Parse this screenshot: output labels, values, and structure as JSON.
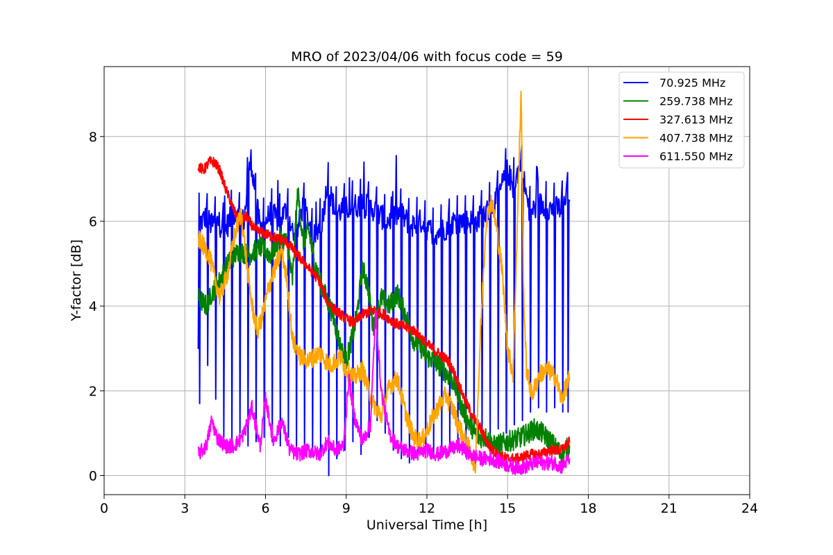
{
  "chart_data": {
    "type": "line",
    "title": "MRO of 2023/04/06 with focus code = 59",
    "xlabel": "Universal Time [h]",
    "ylabel": "Y-factor [dB]",
    "xlim": [
      0,
      24
    ],
    "ylim": [
      -0.45,
      9.65
    ],
    "xticks": [
      0,
      3,
      6,
      9,
      12,
      15,
      18,
      21,
      24
    ],
    "xtick_labels": [
      "0",
      "3",
      "6",
      "9",
      "12",
      "15",
      "18",
      "21",
      "24"
    ],
    "yticks": [
      0,
      2,
      4,
      6,
      8
    ],
    "ytick_labels": [
      "0",
      "2",
      "4",
      "6",
      "8"
    ],
    "grid": true,
    "legend_position": "top-right",
    "series": [
      {
        "name": " 70.925 MHz",
        "color": "#0000ff",
        "x": [
          3.5,
          3.52,
          3.6,
          3.8,
          4.0,
          4.2,
          4.5,
          4.8,
          5.2,
          5.45,
          5.8,
          6.2,
          6.5,
          6.8,
          7.1,
          7.4,
          7.8,
          8.1,
          8.3,
          8.6,
          9.0,
          9.5,
          10.0,
          10.5,
          11.0,
          11.4,
          11.8,
          12.2,
          12.6,
          13.0,
          13.4,
          13.8,
          14.2,
          14.6,
          15.0,
          15.2,
          15.5,
          15.8,
          16.2,
          16.6,
          17.0,
          17.3
        ],
        "y": [
          3.0,
          6.1,
          6.0,
          6.1,
          5.9,
          6.0,
          5.8,
          6.2,
          6.0,
          7.5,
          5.8,
          6.2,
          6.0,
          6.3,
          5.5,
          6.4,
          5.6,
          6.0,
          6.9,
          6.2,
          6.3,
          6.4,
          6.3,
          6.0,
          6.2,
          5.9,
          6.0,
          5.7,
          5.8,
          6.0,
          6.0,
          6.0,
          6.2,
          6.5,
          7.2,
          6.8,
          7.4,
          6.2,
          6.4,
          6.3,
          6.3,
          6.6
        ],
        "dips": {
          "x": [
            3.55,
            3.85,
            4.15,
            4.45,
            4.75,
            5.05,
            5.35,
            5.65,
            5.95,
            6.25,
            6.55,
            6.85,
            7.15,
            7.45,
            7.75,
            8.05,
            8.35,
            8.65,
            8.95,
            9.25,
            9.55,
            9.85,
            10.15,
            10.45,
            10.75,
            11.05,
            11.35,
            11.65,
            11.95,
            12.25,
            12.55,
            12.85,
            13.15,
            13.45,
            13.75,
            14.05,
            14.35,
            14.65,
            14.95,
            15.25,
            15.55,
            15.85,
            16.15,
            16.45,
            16.75,
            17.05,
            17.25
          ],
          "y": [
            1.7,
            2.6,
            1.8,
            0.9,
            0.8,
            1.0,
            0.7,
            0.8,
            0.9,
            0.8,
            0.7,
            0.9,
            0.6,
            0.6,
            0.5,
            0.5,
            0.0,
            0.4,
            0.6,
            0.8,
            0.5,
            0.9,
            1.3,
            1.0,
            0.6,
            0.4,
            0.3,
            0.4,
            0.6,
            0.5,
            0.5,
            0.7,
            0.8,
            0.6,
            1.0,
            0.9,
            0.9,
            1.1,
            1.0,
            1.2,
            1.3,
            1.5,
            1.6,
            1.5,
            1.6,
            1.5,
            1.5
          ]
        }
      },
      {
        "name": "259.738 MHz",
        "color": "#008000",
        "x": [
          3.5,
          3.8,
          4.0,
          4.3,
          4.6,
          5.0,
          5.4,
          5.8,
          6.2,
          6.5,
          6.8,
          7.0,
          7.2,
          7.4,
          7.6,
          7.8,
          8.0,
          8.2,
          8.5,
          8.8,
          9.0,
          9.2,
          9.4,
          9.6,
          9.8,
          10.0,
          10.3,
          10.6,
          10.9,
          11.2,
          11.5,
          11.8,
          12.0,
          12.3,
          12.6,
          13.0,
          13.3,
          13.6,
          13.9,
          14.2,
          14.5,
          15.0,
          15.5,
          16.0,
          16.3,
          16.6,
          17.0,
          17.3
        ],
        "y": [
          4.2,
          4.0,
          4.3,
          4.6,
          5.0,
          5.3,
          5.2,
          5.4,
          5.2,
          5.6,
          5.5,
          4.6,
          6.7,
          5.5,
          5.8,
          5.1,
          4.6,
          4.3,
          3.8,
          3.0,
          2.7,
          3.2,
          3.8,
          4.9,
          4.5,
          3.5,
          4.2,
          4.0,
          4.3,
          3.8,
          3.2,
          3.0,
          2.8,
          2.7,
          2.5,
          2.2,
          1.6,
          1.2,
          0.9,
          0.9,
          0.7,
          0.8,
          0.9,
          1.1,
          1.0,
          0.8,
          0.5,
          0.7
        ]
      },
      {
        "name": "327.613 MHz",
        "color": "#ff0000",
        "x": [
          3.5,
          3.7,
          3.9,
          4.1,
          4.3,
          4.5,
          4.8,
          5.0,
          5.3,
          5.6,
          6.0,
          6.4,
          6.8,
          7.2,
          7.6,
          8.0,
          8.3,
          8.6,
          9.0,
          9.3,
          9.6,
          10.0,
          10.4,
          10.8,
          11.2,
          11.6,
          12.0,
          12.4,
          12.8,
          13.1,
          13.4,
          13.7,
          14.0,
          14.3,
          14.6,
          15.0,
          15.4,
          15.8,
          16.2,
          16.6,
          17.0,
          17.3
        ],
        "y": [
          7.3,
          7.2,
          7.4,
          7.4,
          7.2,
          6.8,
          6.3,
          6.0,
          6.1,
          5.8,
          5.7,
          5.6,
          5.5,
          5.2,
          4.9,
          4.6,
          4.1,
          3.9,
          3.7,
          3.6,
          3.8,
          3.9,
          3.8,
          3.6,
          3.5,
          3.4,
          3.1,
          2.9,
          2.7,
          2.3,
          1.8,
          1.4,
          1.1,
          0.7,
          0.5,
          0.4,
          0.4,
          0.5,
          0.5,
          0.6,
          0.6,
          0.8
        ]
      },
      {
        "name": "407.738 MHz",
        "color": "#ffa500",
        "x": [
          3.5,
          3.7,
          3.9,
          4.1,
          4.3,
          4.6,
          4.9,
          5.1,
          5.3,
          5.5,
          5.7,
          5.9,
          6.1,
          6.3,
          6.6,
          6.8,
          7.0,
          7.3,
          7.6,
          8.0,
          8.4,
          8.8,
          9.0,
          9.3,
          9.6,
          10.0,
          10.3,
          10.6,
          10.9,
          11.2,
          11.5,
          11.8,
          12.1,
          12.4,
          12.7,
          13.0,
          13.3,
          13.6,
          13.8,
          14.0,
          14.2,
          14.4,
          14.6,
          14.8,
          15.0,
          15.2,
          15.4,
          15.5,
          15.6,
          15.7,
          15.9,
          16.2,
          16.5,
          16.8,
          17.0,
          17.3
        ],
        "y": [
          5.6,
          5.4,
          5.2,
          4.7,
          4.2,
          4.8,
          5.8,
          6.2,
          5.0,
          4.0,
          3.4,
          3.8,
          4.4,
          4.8,
          5.3,
          4.6,
          3.2,
          2.8,
          2.7,
          2.9,
          2.6,
          2.8,
          2.5,
          2.3,
          2.5,
          1.7,
          1.4,
          2.1,
          2.3,
          1.5,
          0.9,
          0.8,
          1.2,
          1.6,
          1.9,
          1.5,
          1.0,
          0.6,
          0.2,
          3.5,
          6.0,
          6.5,
          5.8,
          4.8,
          3.0,
          2.4,
          6.8,
          9.1,
          4.2,
          2.5,
          1.9,
          2.4,
          2.5,
          2.3,
          1.8,
          2.3
        ]
      },
      {
        "name": "611.550 MHz",
        "color": "#ff00ff",
        "x": [
          3.5,
          3.8,
          4.0,
          4.2,
          4.5,
          4.8,
          5.0,
          5.2,
          5.5,
          5.8,
          6.0,
          6.3,
          6.6,
          6.9,
          7.2,
          7.6,
          8.0,
          8.3,
          8.6,
          8.9,
          9.1,
          9.3,
          9.6,
          9.9,
          10.1,
          10.3,
          10.6,
          10.9,
          11.2,
          11.6,
          12.0,
          12.4,
          12.8,
          13.2,
          13.6,
          14.0,
          14.4,
          14.8,
          15.2,
          15.6,
          16.0,
          16.4,
          16.8,
          17.0,
          17.3
        ],
        "y": [
          0.5,
          0.7,
          1.3,
          0.9,
          0.7,
          0.7,
          0.8,
          1.0,
          1.6,
          0.7,
          1.8,
          0.8,
          1.3,
          0.6,
          0.5,
          0.6,
          0.5,
          0.8,
          0.6,
          0.7,
          2.3,
          1.4,
          0.8,
          1.2,
          3.9,
          2.0,
          1.0,
          0.7,
          0.6,
          0.5,
          0.6,
          0.5,
          0.6,
          0.7,
          0.5,
          0.4,
          0.4,
          0.3,
          0.2,
          0.2,
          0.3,
          0.3,
          0.3,
          0.2,
          0.4
        ]
      }
    ]
  }
}
